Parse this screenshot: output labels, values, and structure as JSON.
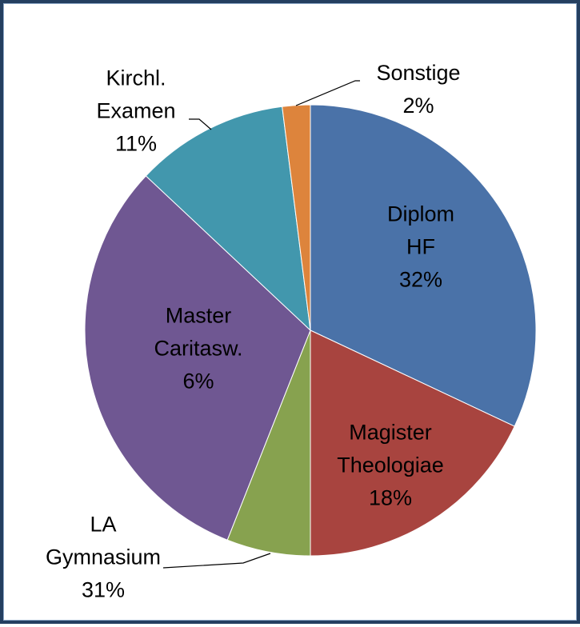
{
  "chart_data": {
    "type": "pie",
    "categories": [
      "Diplom HF",
      "Magister Theologiae",
      "Master Caritasw.",
      "LA Gymnasium",
      "Kirchl. Examen",
      "Sonstige"
    ],
    "values": [
      32,
      18,
      6,
      31,
      11,
      2
    ],
    "value_labels": [
      "32%",
      "18%",
      "6%",
      "31%",
      "11%",
      "2%"
    ],
    "colors": [
      "#4a72a8",
      "#a8443f",
      "#87a24f",
      "#6f5792",
      "#4297ad",
      "#dd843c"
    ]
  }
}
